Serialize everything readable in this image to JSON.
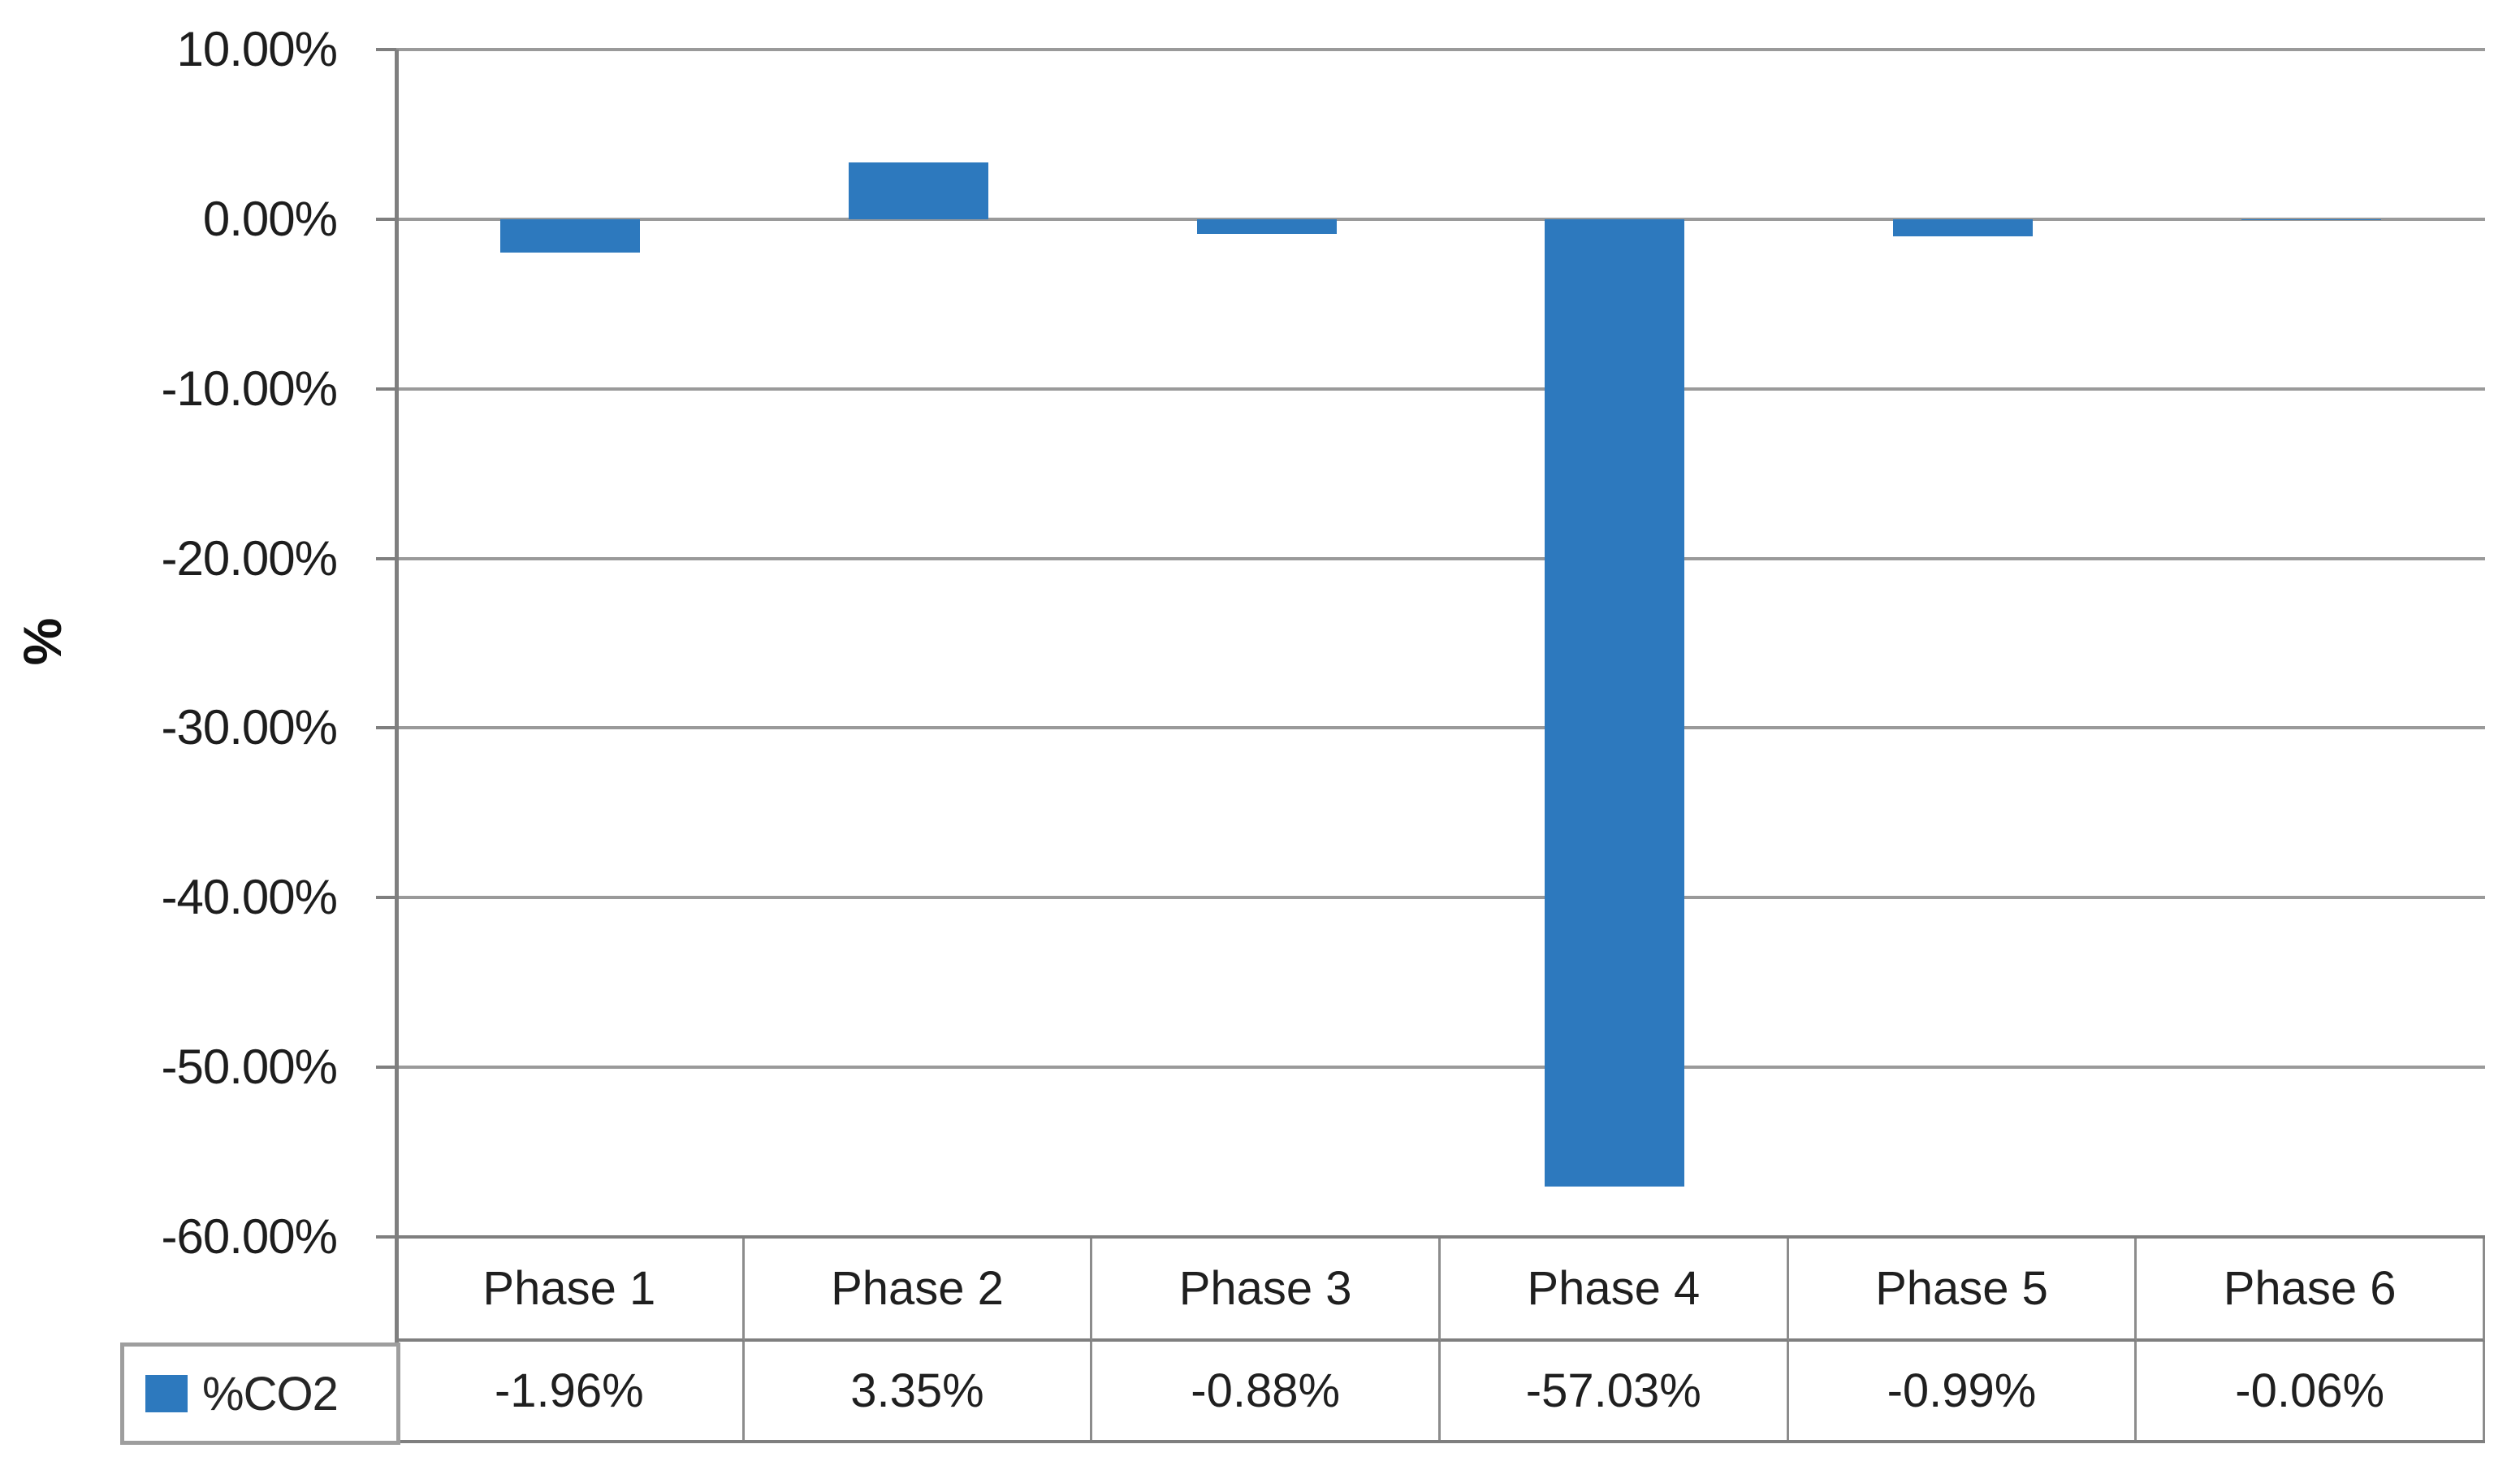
{
  "chart_data": {
    "type": "bar",
    "title": "",
    "xlabel": "",
    "ylabel": "%",
    "categories": [
      "Phase 1",
      "Phase 2",
      "Phase 3",
      "Phase 4",
      "Phase 5",
      "Phase 6"
    ],
    "series": [
      {
        "name": "%CO2",
        "values": [
          -1.96,
          3.35,
          -0.88,
          -57.03,
          -0.99,
          -0.06
        ],
        "value_labels": [
          "-1.96%",
          "3.35%",
          "-0.88%",
          "-57.03%",
          "-0.99%",
          "-0.06%"
        ],
        "color": "#2d79be"
      }
    ],
    "y_axis": {
      "min": -60,
      "max": 10,
      "step": 10,
      "tick_labels": [
        "10.00%",
        "0.00%",
        "-10.00%",
        "-20.00%",
        "-30.00%",
        "-40.00%",
        "-50.00%",
        "-60.00%"
      ]
    },
    "grid": true,
    "legend_position": "bottom-left",
    "data_table_shown": true
  },
  "colors": {
    "bar_fill": "#2d79be",
    "axis_line": "#7f7f7f",
    "gridline": "#9a9a9a",
    "table_border": "#7f7f7f",
    "legend_border": "#9e9e9e",
    "text": "#1d1d1d",
    "background": "#ffffff"
  }
}
